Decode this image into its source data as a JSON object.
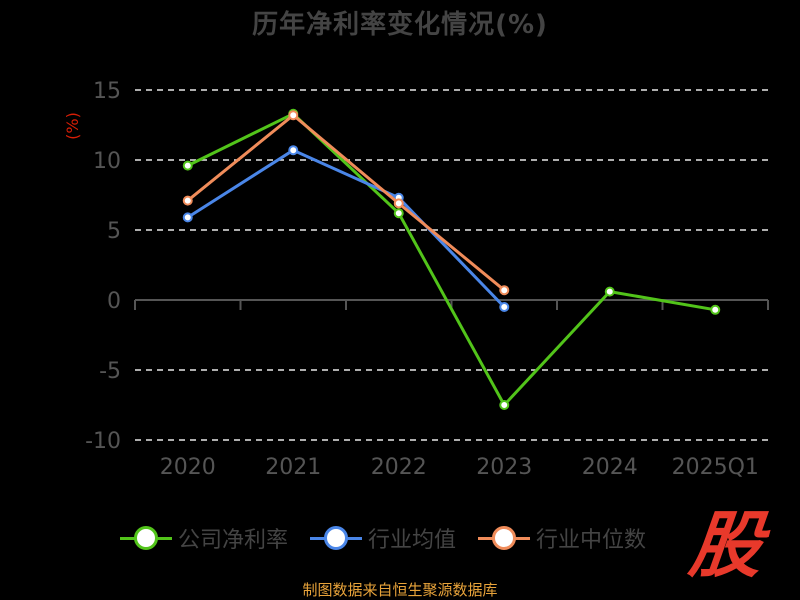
{
  "title": "历年净利率变化情况(%)",
  "footer": "制图数据来自恒生聚源数据库",
  "logo_text": "股",
  "chart_data": {
    "type": "line",
    "title": "历年净利率变化情况(%)",
    "ylabel": "(%)",
    "xlabel": "",
    "categories": [
      "2020",
      "2021",
      "2022",
      "2023",
      "2024",
      "2025Q1"
    ],
    "ylim": [
      -10,
      15
    ],
    "yticks": [
      -10,
      -5,
      0,
      5,
      10,
      15
    ],
    "grid": true,
    "legend_position": "bottom",
    "series": [
      {
        "name": "公司净利率",
        "color": "#52c41a",
        "values": [
          9.6,
          13.3,
          6.2,
          -7.5,
          0.6,
          -0.7
        ]
      },
      {
        "name": "行业均值",
        "color": "#4a86e8",
        "values": [
          5.9,
          10.7,
          7.3,
          -0.5,
          null,
          null
        ]
      },
      {
        "name": "行业中位数",
        "color": "#f08c5a",
        "values": [
          7.1,
          13.2,
          6.9,
          0.7,
          null,
          null
        ]
      }
    ]
  }
}
